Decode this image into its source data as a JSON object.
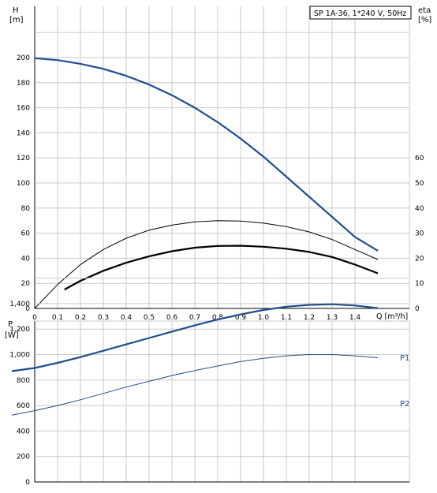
{
  "chart_data": [
    {
      "type": "line",
      "title": "SP 1A-36, 1*240 V, 50Hz",
      "y_left_label": [
        "H",
        "[m]"
      ],
      "y_right_label": [
        "eta",
        "[%]"
      ],
      "xlabel": "Q [m³/h]",
      "x_ticks": [
        "0",
        "0.1",
        "0.2",
        "0.3",
        "0.4",
        "0.5",
        "0.6",
        "0.7",
        "0.8",
        "0.9",
        "1.0",
        "1.1",
        "1.2",
        "1.3",
        "1.4"
      ],
      "y_left_ticks": [
        "0",
        "20",
        "40",
        "60",
        "80",
        "100",
        "120",
        "140",
        "160",
        "180",
        "200"
      ],
      "y_right_ticks": [
        "0",
        "10",
        "20",
        "30",
        "40",
        "50",
        "60"
      ],
      "xlim": [
        0,
        1.6
      ],
      "ylim_left": [
        0,
        220
      ],
      "ylim_right": [
        0,
        110
      ],
      "grid": true,
      "series": [
        {
          "axis": "left",
          "color": "#1f4e8c",
          "width": 2.2,
          "x": [
            0,
            0.1,
            0.2,
            0.3,
            0.4,
            0.5,
            0.6,
            0.7,
            0.8,
            0.9,
            1.0,
            1.1,
            1.2,
            1.3,
            1.4,
            1.5
          ],
          "values": [
            199.5,
            198,
            195,
            191,
            185.5,
            178.5,
            170,
            160,
            148.5,
            135.5,
            121,
            105,
            89,
            73,
            57,
            46
          ]
        },
        {
          "axis": "right",
          "color": "#000000",
          "width": 1,
          "x": [
            0,
            0.1,
            0.2,
            0.3,
            0.4,
            0.5,
            0.6,
            0.7,
            0.8,
            0.9,
            1.0,
            1.1,
            1.2,
            1.3,
            1.4,
            1.5
          ],
          "values": [
            0,
            9.5,
            17.5,
            23.5,
            28,
            31.2,
            33.2,
            34.5,
            35,
            34.8,
            34,
            32.6,
            30.5,
            27.5,
            23.5,
            19.5
          ]
        },
        {
          "axis": "right",
          "color": "#000000",
          "width": 2.2,
          "x": [
            0.13,
            0.2,
            0.3,
            0.4,
            0.5,
            0.6,
            0.7,
            0.8,
            0.9,
            1.0,
            1.1,
            1.2,
            1.3,
            1.4,
            1.5
          ],
          "values": [
            7.5,
            11,
            15,
            18.2,
            20.8,
            22.8,
            24.2,
            24.9,
            25,
            24.6,
            23.8,
            22.5,
            20.5,
            17.5,
            14
          ]
        }
      ]
    },
    {
      "type": "line",
      "y_label": [
        "P",
        "[W]"
      ],
      "y_ticks": [
        "0",
        "200",
        "400",
        "600",
        "800",
        "1,000",
        "1,200",
        "1,400"
      ],
      "ylim": [
        0,
        1400
      ],
      "xlim": [
        0,
        1.6
      ],
      "grid": true,
      "series": [
        {
          "name": "P1",
          "color": "#1f4e8c",
          "width": 2.2,
          "x": [
            -0.1,
            0.0,
            0.1,
            0.2,
            0.3,
            0.4,
            0.5,
            0.6,
            0.7,
            0.8,
            0.9,
            1.0,
            1.1,
            1.2,
            1.3,
            1.4,
            1.5
          ],
          "values": [
            870,
            895,
            935,
            980,
            1030,
            1080,
            1130,
            1180,
            1230,
            1275,
            1315,
            1350,
            1375,
            1390,
            1395,
            1385,
            1365
          ]
        },
        {
          "name": "P2",
          "color": "#1f4e8c",
          "width": 1,
          "x": [
            -0.1,
            0.0,
            0.1,
            0.2,
            0.3,
            0.4,
            0.5,
            0.6,
            0.7,
            0.8,
            0.9,
            1.0,
            1.1,
            1.2,
            1.3,
            1.4,
            1.5
          ],
          "values": [
            525,
            560,
            600,
            645,
            695,
            745,
            790,
            835,
            875,
            910,
            945,
            970,
            990,
            1000,
            1000,
            990,
            975
          ]
        }
      ]
    }
  ]
}
